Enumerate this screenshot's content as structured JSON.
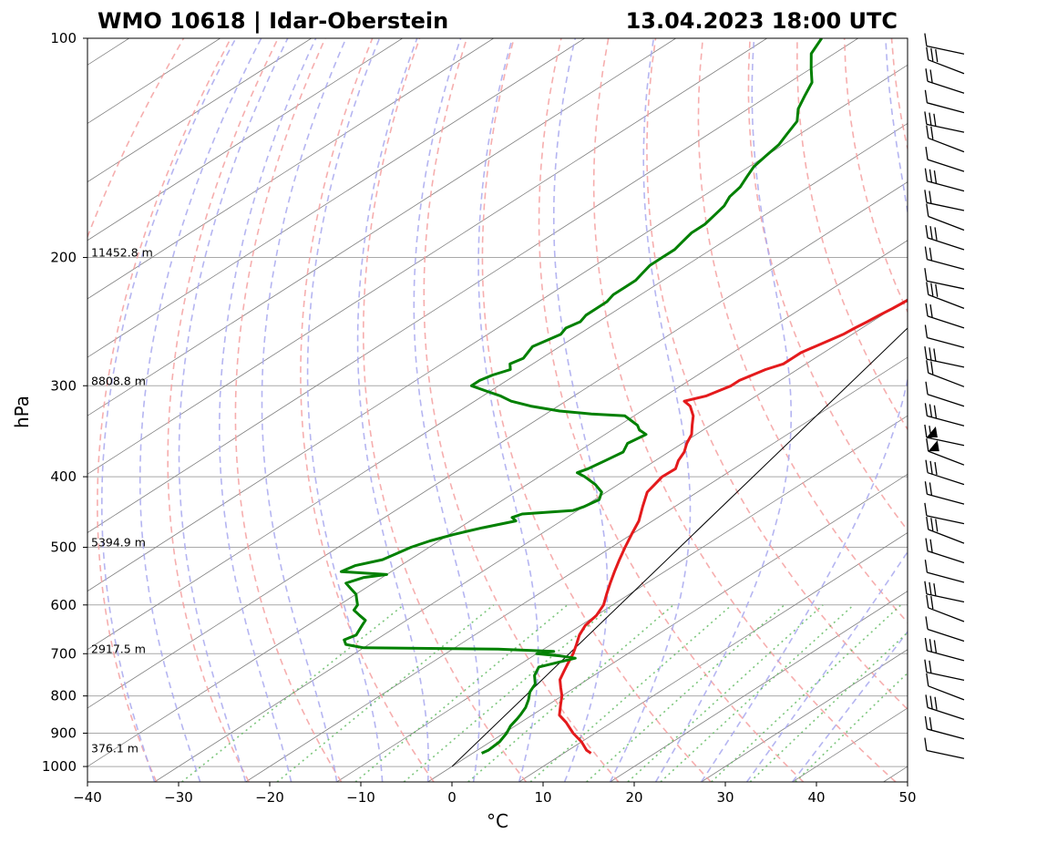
{
  "header": {
    "title_left": "WMO 10618 | Idar-Oberstein",
    "title_right": "13.04.2023 18:00 UTC"
  },
  "chart_data": {
    "type": "line",
    "subtype": "skew-T log-p diagram",
    "xlabel": "°C",
    "ylabel": "hPa",
    "xlim": [
      -40,
      50
    ],
    "ylim": [
      1000,
      100
    ],
    "y_scale": "log",
    "x_ticks": [
      -40,
      -30,
      -20,
      -10,
      0,
      10,
      20,
      30,
      40,
      50
    ],
    "x_tick_labels": [
      "−40",
      "−30",
      "−20",
      "−10",
      "0",
      "10",
      "20",
      "30",
      "40",
      "50"
    ],
    "y_ticks": [
      100,
      200,
      300,
      400,
      500,
      600,
      700,
      800,
      900,
      1000
    ],
    "y_tick_labels": [
      "100",
      "200",
      "300",
      "400",
      "500",
      "600",
      "700",
      "800",
      "900",
      "1000"
    ],
    "height_annotations": [
      {
        "p": 959,
        "text": "376.1 m"
      },
      {
        "p": 700,
        "text": "2917.5 m"
      },
      {
        "p": 500,
        "text": "5394.9 m"
      },
      {
        "p": 300,
        "text": "8808.8 m"
      },
      {
        "p": 200,
        "text": "11452.8 m"
      }
    ],
    "colors": {
      "temperature": "#e41a1c",
      "dewpoint": "#008000",
      "dry_adiabats": "#f4a0a0",
      "moist_adiabats": "#a8a8ee",
      "mixing_ratio": "#5cb85c",
      "isotherms": "#808080",
      "isobars": "#a9a9a9",
      "zero_isotherm": "#000000",
      "wind_barbs": "#000000"
    },
    "series": [
      {
        "name": "Temperature",
        "points": [
          [
            959,
            13.0
          ],
          [
            950,
            12.0
          ],
          [
            925,
            10.0
          ],
          [
            900,
            7.6
          ],
          [
            870,
            5.0
          ],
          [
            850,
            3.0
          ],
          [
            820,
            1.2
          ],
          [
            800,
            0.0
          ],
          [
            780,
            -1.5
          ],
          [
            760,
            -3.0
          ],
          [
            740,
            -4.0
          ],
          [
            720,
            -5.0
          ],
          [
            700,
            -6.0
          ],
          [
            680,
            -7.2
          ],
          [
            660,
            -8.5
          ],
          [
            640,
            -9.5
          ],
          [
            620,
            -10.0
          ],
          [
            600,
            -11.0
          ],
          [
            580,
            -12.5
          ],
          [
            560,
            -14.0
          ],
          [
            540,
            -15.5
          ],
          [
            520,
            -17.0
          ],
          [
            500,
            -18.5
          ],
          [
            480,
            -20.0
          ],
          [
            460,
            -21.5
          ],
          [
            440,
            -23.5
          ],
          [
            420,
            -25.5
          ],
          [
            410,
            -26.0
          ],
          [
            400,
            -26.5
          ],
          [
            390,
            -26.4
          ],
          [
            380,
            -27.5
          ],
          [
            370,
            -28.3
          ],
          [
            360,
            -29.5
          ],
          [
            350,
            -30.5
          ],
          [
            340,
            -32.0
          ],
          [
            330,
            -33.5
          ],
          [
            320,
            -35.5
          ],
          [
            315,
            -37.0
          ],
          [
            310,
            -35.5
          ],
          [
            305,
            -35.0
          ],
          [
            300,
            -34.5
          ],
          [
            295,
            -34.5
          ],
          [
            290,
            -34.0
          ],
          [
            285,
            -33.5
          ],
          [
            280,
            -32.5
          ],
          [
            275,
            -32.5
          ],
          [
            270,
            -32.5
          ],
          [
            265,
            -32.0
          ],
          [
            260,
            -31.5
          ],
          [
            255,
            -31.0
          ],
          [
            250,
            -30.8
          ],
          [
            245,
            -30.5
          ],
          [
            240,
            -30.3
          ],
          [
            235,
            -30.0
          ],
          [
            230,
            -29.8
          ],
          [
            225,
            -29.5
          ],
          [
            220,
            -30.0
          ],
          [
            215,
            -30.5
          ],
          [
            210,
            -31.0
          ],
          [
            205,
            -31.5
          ],
          [
            200,
            -32.5
          ],
          [
            195,
            -33.2
          ],
          [
            190,
            -34.5
          ],
          [
            185,
            -35.0
          ],
          [
            180,
            -36.0
          ],
          [
            175,
            -37.0
          ],
          [
            170,
            -38.5
          ],
          [
            165,
            -40.0
          ],
          [
            160,
            -41.5
          ],
          [
            155,
            -43.0
          ],
          [
            150,
            -44.0
          ],
          [
            145,
            -44.5
          ],
          [
            140,
            -45.5
          ],
          [
            135,
            -46.0
          ],
          [
            130,
            -48.0
          ],
          [
            125,
            -49.5
          ],
          [
            120,
            -51.0
          ],
          [
            115,
            -53.5
          ],
          [
            110,
            -56.5
          ],
          [
            105,
            -59.0
          ],
          [
            100,
            -60.5
          ]
        ]
      },
      {
        "name": "Dewpoint",
        "points": [
          [
            959,
            1.0
          ],
          [
            950,
            1.2
          ],
          [
            925,
            1.0
          ],
          [
            900,
            0.3
          ],
          [
            880,
            -0.5
          ],
          [
            860,
            -1.0
          ],
          [
            850,
            -1.3
          ],
          [
            830,
            -2.0
          ],
          [
            810,
            -3.0
          ],
          [
            790,
            -4.2
          ],
          [
            770,
            -5.0
          ],
          [
            750,
            -6.5
          ],
          [
            730,
            -7.5
          ],
          [
            710,
            -5.0
          ],
          [
            705,
            -7.0
          ],
          [
            700,
            -10.0
          ],
          [
            695,
            -8.5
          ],
          [
            690,
            -15.0
          ],
          [
            687,
            -30.0
          ],
          [
            680,
            -32.5
          ],
          [
            670,
            -33.5
          ],
          [
            660,
            -33.0
          ],
          [
            650,
            -33.5
          ],
          [
            640,
            -34.0
          ],
          [
            630,
            -34.5
          ],
          [
            620,
            -36.0
          ],
          [
            610,
            -37.5
          ],
          [
            600,
            -38.0
          ],
          [
            590,
            -39.0
          ],
          [
            580,
            -40.0
          ],
          [
            570,
            -41.5
          ],
          [
            560,
            -43.0
          ],
          [
            550,
            -42.0
          ],
          [
            545,
            -40.0
          ],
          [
            540,
            -45.5
          ],
          [
            530,
            -45.0
          ],
          [
            520,
            -43.0
          ],
          [
            510,
            -42.5
          ],
          [
            500,
            -42.0
          ],
          [
            490,
            -41.0
          ],
          [
            480,
            -39.5
          ],
          [
            470,
            -37.5
          ],
          [
            460,
            -35.0
          ],
          [
            455,
            -36.0
          ],
          [
            450,
            -35.5
          ],
          [
            445,
            -30.5
          ],
          [
            440,
            -30.0
          ],
          [
            430,
            -29.5
          ],
          [
            420,
            -30.5
          ],
          [
            410,
            -32.5
          ],
          [
            400,
            -35.0
          ],
          [
            395,
            -36.5
          ],
          [
            390,
            -36.0
          ],
          [
            380,
            -35.5
          ],
          [
            370,
            -35.0
          ],
          [
            360,
            -36.0
          ],
          [
            350,
            -35.5
          ],
          [
            345,
            -37.0
          ],
          [
            340,
            -38.0
          ],
          [
            335,
            -39.5
          ],
          [
            330,
            -41.0
          ],
          [
            328,
            -45.0
          ],
          [
            325,
            -49.0
          ],
          [
            320,
            -53.0
          ],
          [
            315,
            -56.0
          ],
          [
            310,
            -58.0
          ],
          [
            305,
            -60.5
          ],
          [
            300,
            -63.0
          ],
          [
            295,
            -63.0
          ],
          [
            290,
            -62.5
          ],
          [
            285,
            -61.5
          ],
          [
            280,
            -62.5
          ],
          [
            275,
            -62.0
          ],
          [
            270,
            -62.5
          ],
          [
            265,
            -63.0
          ],
          [
            260,
            -62.5
          ],
          [
            255,
            -62.0
          ],
          [
            250,
            -62.5
          ],
          [
            245,
            -62.0
          ],
          [
            240,
            -62.5
          ],
          [
            235,
            -62.5
          ],
          [
            230,
            -62.5
          ],
          [
            225,
            -63.0
          ],
          [
            220,
            -63.0
          ],
          [
            215,
            -63.0
          ],
          [
            210,
            -63.5
          ],
          [
            205,
            -64.0
          ],
          [
            200,
            -64.0
          ],
          [
            195,
            -64.0
          ],
          [
            190,
            -64.5
          ],
          [
            185,
            -65.0
          ],
          [
            180,
            -65.0
          ],
          [
            175,
            -65.5
          ],
          [
            170,
            -66.0
          ],
          [
            165,
            -67.0
          ],
          [
            160,
            -67.5
          ],
          [
            155,
            -68.5
          ],
          [
            150,
            -69.5
          ],
          [
            145,
            -70.0
          ],
          [
            140,
            -70.5
          ],
          [
            135,
            -71.5
          ],
          [
            130,
            -72.5
          ],
          [
            125,
            -74.5
          ],
          [
            120,
            -76.0
          ],
          [
            115,
            -77.5
          ],
          [
            110,
            -80.0
          ],
          [
            105,
            -82.5
          ],
          [
            100,
            -84.0
          ]
        ]
      }
    ],
    "zero_isotherm_line": [
      [
        1000,
        0
      ],
      [
        250,
        50
      ]
    ],
    "background_lines": {
      "isotherm_spacing_C": 10,
      "dry_adiabat_spacing_K": 10,
      "moist_adiabat_start_temps_C": [
        -30,
        -25,
        -20,
        -15,
        -10,
        -5,
        0,
        5,
        10,
        15,
        20,
        25,
        30,
        35,
        40
      ],
      "mixing_ratio_lines_top_hPa": 600
    },
    "wind_barbs_note": "vertical column of wind barbs to the right of the plot, 1000 hPa (bottom) to 100 hPa (top)"
  }
}
